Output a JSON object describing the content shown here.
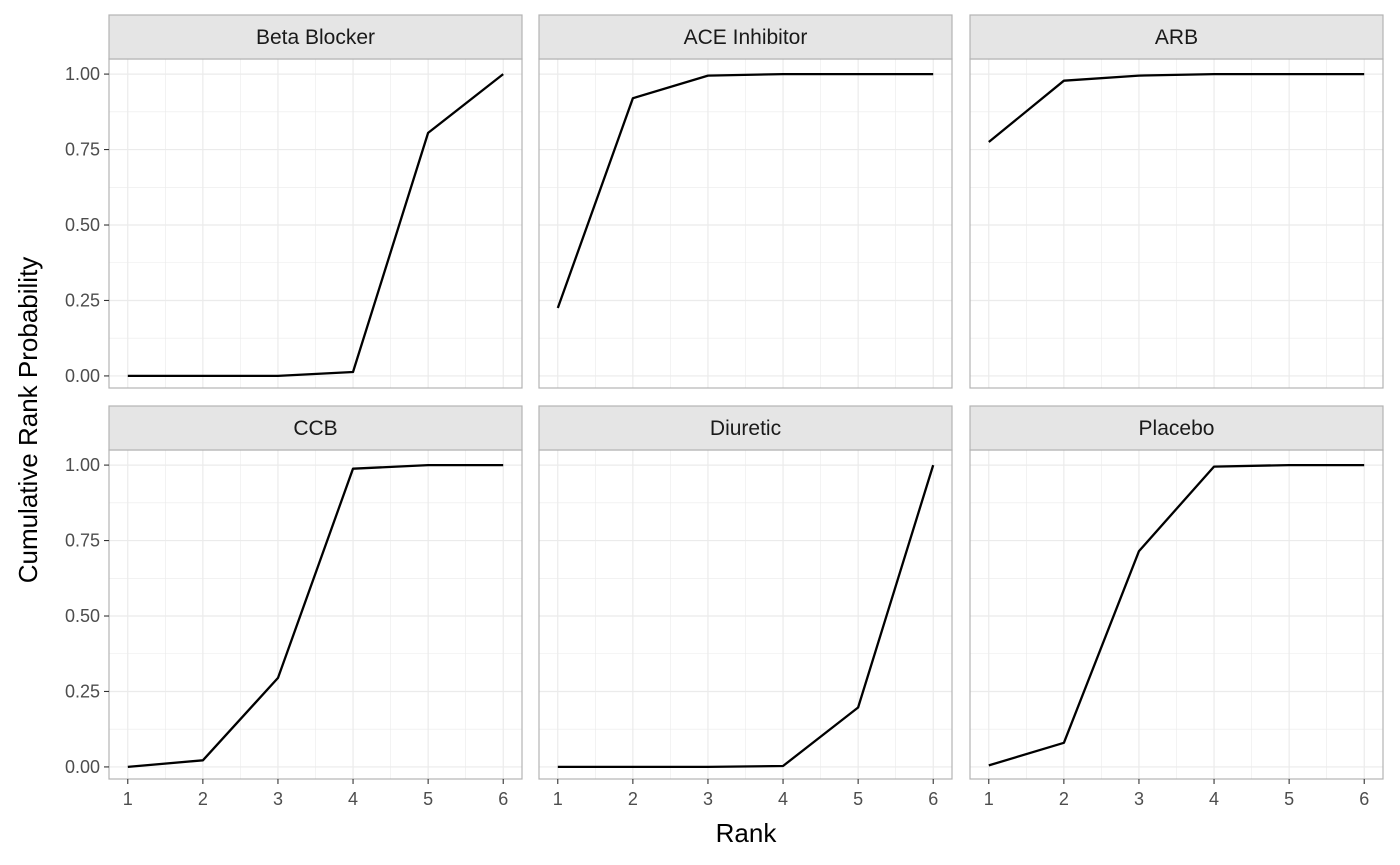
{
  "chart_data": {
    "type": "line",
    "layout": "facet-grid-2x3",
    "xlabel": "Rank",
    "ylabel": "Cumulative Rank Probability",
    "x": [
      1,
      2,
      3,
      4,
      5,
      6
    ],
    "x_ticks": [
      "1",
      "2",
      "3",
      "4",
      "5",
      "6"
    ],
    "y_ticks": [
      "0.00",
      "0.25",
      "0.50",
      "0.75",
      "1.00"
    ],
    "ylim": [
      -0.04,
      1.05
    ],
    "xlim": [
      0.75,
      6.25
    ],
    "grid": true,
    "line_color": "#000000",
    "strip_fill": "#e5e5e5",
    "grid_color": "#ebebeb",
    "panel_border_color": "#b3b3b3",
    "panels": [
      {
        "name": "Beta Blocker",
        "values": [
          0.0,
          0.0,
          0.0,
          0.013,
          0.805,
          1.0
        ]
      },
      {
        "name": "ACE Inhibitor",
        "values": [
          0.225,
          0.92,
          0.995,
          1.0,
          1.0,
          1.0
        ]
      },
      {
        "name": "ARB",
        "values": [
          0.775,
          0.978,
          0.995,
          1.0,
          1.0,
          1.0
        ]
      },
      {
        "name": "CCB",
        "values": [
          0.0,
          0.022,
          0.295,
          0.988,
          1.0,
          1.0
        ]
      },
      {
        "name": "Diuretic",
        "values": [
          0.0,
          0.0,
          0.0,
          0.003,
          0.197,
          1.0
        ]
      },
      {
        "name": "Placebo",
        "values": [
          0.005,
          0.08,
          0.715,
          0.995,
          1.0,
          1.0
        ]
      }
    ]
  }
}
